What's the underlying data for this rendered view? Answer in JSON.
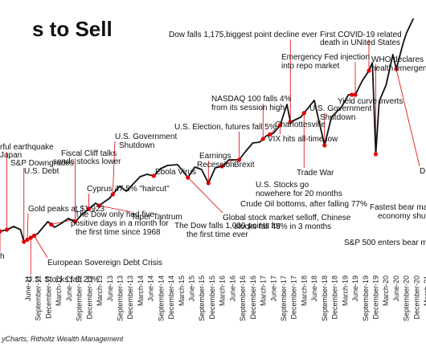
{
  "chart_data": {
    "type": "line",
    "title": "s to Sell",
    "source": "yCharts, Ritholtz Wealth Management",
    "line_color": "#111111",
    "marker_color": "#e00000",
    "ticks": [
      "June-11",
      "September-11",
      "December-11",
      "March-12",
      "June-12",
      "September-12",
      "December-12",
      "March-13",
      "June-13",
      "September-13",
      "December-13",
      "March-14",
      "June-14",
      "September-14",
      "December-14",
      "March-15",
      "June-15",
      "September-15",
      "December-15",
      "March-16",
      "June-16",
      "September-16",
      "December-16",
      "March-17",
      "June-17",
      "September-17",
      "December-17",
      "March-18",
      "June-18",
      "September-18",
      "December-18",
      "March-19",
      "June-19",
      "September-19",
      "December-19",
      "March-20",
      "June-20",
      "September-20",
      "December-20",
      "March-21"
    ],
    "series": [
      {
        "x": [
          "2011-01",
          "2011-03",
          "2011-05",
          "2011-07",
          "2011-08",
          "2011-10",
          "2011-12",
          "2012-03",
          "2012-05",
          "2012-07",
          "2012-09",
          "2012-11",
          "2013-01",
          "2013-03",
          "2013-05",
          "2013-06",
          "2013-09",
          "2013-12",
          "2014-02",
          "2014-04",
          "2014-06",
          "2014-08",
          "2014-10",
          "2014-12",
          "2015-02",
          "2015-05",
          "2015-08",
          "2015-10",
          "2015-12",
          "2016-02",
          "2016-04",
          "2016-06",
          "2016-08",
          "2016-11",
          "2017-01",
          "2017-03",
          "2017-05",
          "2017-07",
          "2017-09",
          "2017-11",
          "2018-01",
          "2018-02",
          "2018-05",
          "2018-09",
          "2018-10",
          "2018-12",
          "2019-02",
          "2019-05",
          "2019-07",
          "2019-09",
          "2019-11",
          "2020-01",
          "2020-02",
          "2020-03",
          "2020-04",
          "2020-06",
          "2020-08",
          "2020-09",
          "2020-11",
          "2020-12",
          "2021-02"
        ],
        "values": [
          1280,
          1300,
          1340,
          1300,
          1150,
          1200,
          1250,
          1400,
          1330,
          1380,
          1440,
          1400,
          1490,
          1560,
          1630,
          1600,
          1690,
          1840,
          1780,
          1870,
          1960,
          1990,
          1970,
          2060,
          2100,
          2110,
          1950,
          2080,
          2050,
          1880,
          2070,
          2090,
          2170,
          2170,
          2280,
          2380,
          2390,
          2470,
          2500,
          2600,
          2860,
          2640,
          2700,
          2910,
          2720,
          2350,
          2700,
          2830,
          2980,
          2980,
          3150,
          3280,
          3380,
          2240,
          2900,
          3100,
          3480,
          3300,
          3620,
          3750,
          3930
        ]
      }
    ],
    "annotations": [
      {
        "text": "Dow falls 1,175,biggest point decline ever",
        "date": "2018-02"
      },
      {
        "text": "First COVID-19 related",
        "date": "2020-01"
      },
      {
        "text": "death in UNited States",
        "date": "2020-01"
      },
      {
        "text": "Emergency Fed injection",
        "date": "2019-09"
      },
      {
        "text": "into repo market",
        "date": "2019-09"
      },
      {
        "text": "WHO declares a",
        "date": "2020-03"
      },
      {
        "text": "health emergenc",
        "date": "2020-03"
      },
      {
        "text": "NASDAQ 100 falls 4%",
        "date": "2017-06"
      },
      {
        "text": "from its  session high",
        "date": "2017-06"
      },
      {
        "text": "Yield curve inverts",
        "date": "2019-08"
      },
      {
        "text": "U.S. Government",
        "date": "2018-12"
      },
      {
        "text": "Shutdown",
        "date": "2018-12"
      },
      {
        "text": "Charlottesville",
        "date": "2017-08"
      },
      {
        "text": "U.S. Election, futures fall 5%",
        "date": "2016-11"
      },
      {
        "text": "VIX hits all-time low",
        "date": "2017-11"
      },
      {
        "text": "rful earthquake",
        "date": "2011-03"
      },
      {
        "text": "Japan",
        "date": "2011-03"
      },
      {
        "text": "Fiscal Cliff talks",
        "date": "2012-11"
      },
      {
        "text": "sends stocks lower",
        "date": "2012-11"
      },
      {
        "text": "U.S. Government",
        "date": "2013-10"
      },
      {
        "text": "Shutdown",
        "date": "2013-10"
      },
      {
        "text": "Earnings",
        "date": "2016-02"
      },
      {
        "text": "Recession",
        "date": "2016-02"
      },
      {
        "text": "Brexit",
        "date": "2016-06"
      },
      {
        "text": "Trade War",
        "date": "2018-06"
      },
      {
        "text": "S&P Downgrades",
        "date": "2011-08"
      },
      {
        "text": "U.S. Debt",
        "date": "2011-08"
      },
      {
        "text": "Cyprus 47.5% \"haircut\"",
        "date": "2013-03"
      },
      {
        "text": "Ebola Virus",
        "date": "2014-10"
      },
      {
        "text": "U.S. Stocks go",
        "date": "2017-06"
      },
      {
        "text": "nowehere for 20 months",
        "date": "2017-06"
      },
      {
        "text": "Crude Oil bottoms, after falling 77%",
        "date": "2016-02"
      },
      {
        "text": "D",
        "date": "2020-09"
      },
      {
        "text": "Gold peaks at $1,923",
        "date": "2011-09"
      },
      {
        "text": "Taper Tantrum",
        "date": "2013-06"
      },
      {
        "text": "Global stock market selloff, Chinese",
        "date": "2015-08"
      },
      {
        "text": "stocks fall 45% in 3 months",
        "date": "2015-08"
      },
      {
        "text": "Fastest bear mar",
        "date": "2020-03"
      },
      {
        "text": "economy shuts",
        "date": "2020-03"
      },
      {
        "text": "The Dow only had five",
        "date": "2012-04"
      },
      {
        "text": "positive days in a month for",
        "date": "2012-04"
      },
      {
        "text": "the first time since 1968",
        "date": "2012-04"
      },
      {
        "text": "The Dow falls 1,000 points for",
        "date": "2015-08"
      },
      {
        "text": "the first time ever",
        "date": "2015-08"
      },
      {
        "text": "S&P 500 enters bear marke",
        "date": "2020-03"
      },
      {
        "text": "h",
        "date": "2011-01"
      },
      {
        "text": "European Sovereign Debt Crisis",
        "date": "2011-11"
      },
      {
        "text": "U.S. Stocks fall 20%",
        "date": "2011-10"
      }
    ]
  }
}
